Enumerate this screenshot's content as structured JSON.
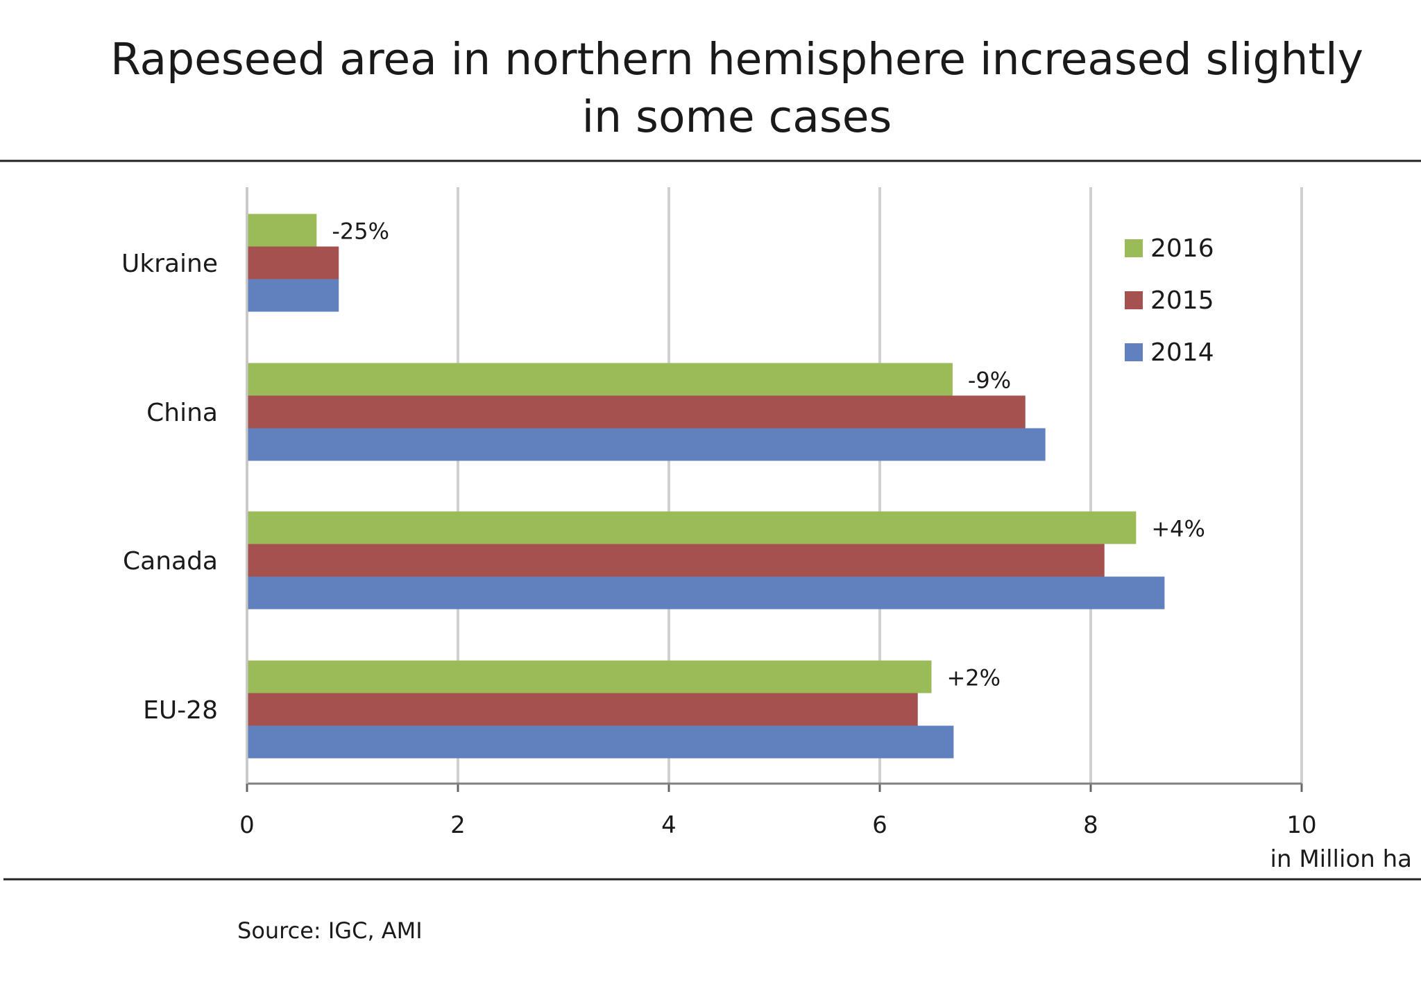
{
  "title_lines": [
    "Rapeseed area in northern hemisphere increased slightly",
    "in some cases"
  ],
  "source": "Source: IGC, AMI",
  "chart_data": {
    "type": "bar",
    "orientation": "horizontal",
    "title": "Rapeseed area in northern hemisphere increased slightly in some cases",
    "categories": [
      "Ukraine",
      "China",
      "Canada",
      "EU-28"
    ],
    "series": [
      {
        "name": "2016",
        "color": "#9bbb59",
        "values": [
          0.66,
          6.69,
          8.43,
          6.49
        ]
      },
      {
        "name": "2015",
        "color": "#a5514f",
        "values": [
          0.87,
          7.38,
          8.13,
          6.36
        ]
      },
      {
        "name": "2014",
        "color": "#6181be",
        "values": [
          0.87,
          7.57,
          8.7,
          6.7
        ]
      }
    ],
    "annotations": [
      "-25%",
      "-9%",
      "+4%",
      "+2%"
    ],
    "xlabel": "in Million ha",
    "ylabel": "",
    "xlim": [
      0,
      10
    ],
    "xticks": [
      "0",
      "2",
      "4",
      "6",
      "8",
      "10"
    ],
    "grid": true,
    "legend_placement": "top-right",
    "legend_order": [
      "2016",
      "2015",
      "2014"
    ]
  }
}
